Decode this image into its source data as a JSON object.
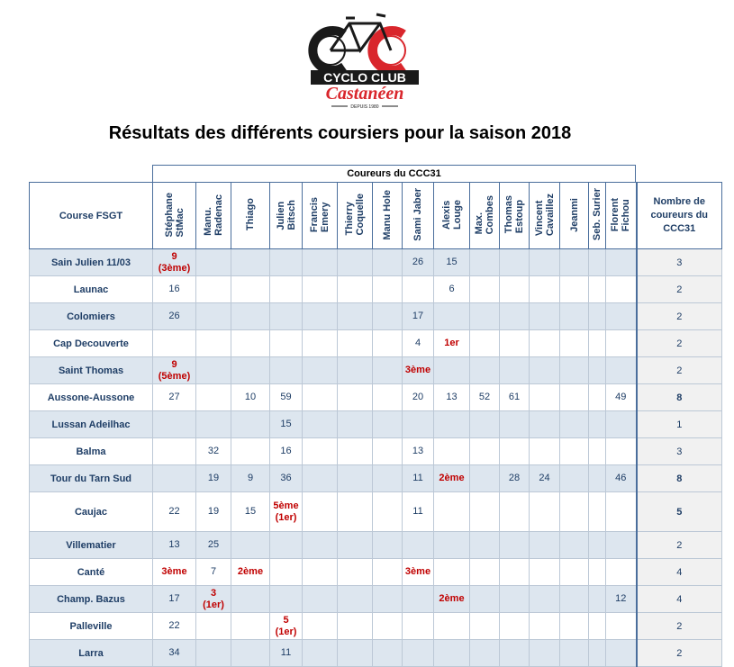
{
  "logo": {
    "brand_line1": "CYCLO CLUB",
    "brand_line2": "Castanéen",
    "tagline": "DEPUIS 1980",
    "colors": {
      "red": "#d9262c",
      "black": "#1a1a1a"
    }
  },
  "title": "Résultats des différents coursiers pour la saison 2018",
  "group_header": "Coureurs du CCC31",
  "columns": {
    "course": "Course FSGT",
    "count": "Nombre de coureurs du CCC31",
    "riders": [
      "Stéphane\nStMac",
      "Manu.\nRadenac",
      "Thiago",
      "Julien\nBitsch",
      "Francis\nEmery",
      "Thierry\nCoquelle",
      "Manu Hole",
      "Sami Jaber",
      "Alexis\nLouge",
      "Max.\nCombes",
      "Thomas\nEstoup",
      "Vincent\nCavaillez",
      "Jeanmi",
      "Seb. Surier",
      "Florent\nFichou"
    ]
  },
  "rows": [
    {
      "course": "Sain Julien 11/03",
      "cells": [
        {
          "t": "9\n(3ème)",
          "red": true
        },
        "",
        "",
        "",
        "",
        "",
        "",
        {
          "t": "26"
        },
        {
          "t": "15"
        },
        "",
        "",
        "",
        "",
        "",
        ""
      ],
      "count": "3",
      "bold": false
    },
    {
      "course": "Launac",
      "cells": [
        {
          "t": "16"
        },
        "",
        "",
        "",
        "",
        "",
        "",
        "",
        {
          "t": "6"
        },
        "",
        "",
        "",
        "",
        "",
        ""
      ],
      "count": "2",
      "bold": false
    },
    {
      "course": "Colomiers",
      "cells": [
        {
          "t": "26"
        },
        "",
        "",
        "",
        "",
        "",
        "",
        {
          "t": "17"
        },
        "",
        "",
        "",
        "",
        "",
        "",
        ""
      ],
      "count": "2",
      "bold": false
    },
    {
      "course": "Cap Decouverte",
      "cells": [
        "",
        "",
        "",
        "",
        "",
        "",
        "",
        {
          "t": "4"
        },
        {
          "t": "1er",
          "red": true
        },
        "",
        "",
        "",
        "",
        "",
        ""
      ],
      "count": "2",
      "bold": false
    },
    {
      "course": "Saint Thomas",
      "cells": [
        {
          "t": "9\n(5ème)",
          "red": true
        },
        "",
        "",
        "",
        "",
        "",
        "",
        {
          "t": "3ème",
          "red": true
        },
        "",
        "",
        "",
        "",
        "",
        "",
        ""
      ],
      "count": "2",
      "bold": false
    },
    {
      "course": "Aussone-Aussone",
      "cells": [
        {
          "t": "27"
        },
        "",
        {
          "t": "10"
        },
        {
          "t": "59"
        },
        "",
        "",
        "",
        {
          "t": "20"
        },
        {
          "t": "13"
        },
        {
          "t": "52"
        },
        {
          "t": "61"
        },
        "",
        "",
        "",
        {
          "t": "49"
        }
      ],
      "count": "8",
      "bold": true
    },
    {
      "course": "Lussan Adeilhac",
      "cells": [
        "",
        "",
        "",
        {
          "t": "15"
        },
        "",
        "",
        "",
        "",
        "",
        "",
        "",
        "",
        "",
        "",
        ""
      ],
      "count": "1",
      "bold": false
    },
    {
      "course": "Balma",
      "cells": [
        "",
        {
          "t": "32"
        },
        "",
        {
          "t": "16"
        },
        "",
        "",
        "",
        {
          "t": "13"
        },
        "",
        "",
        "",
        "",
        "",
        "",
        ""
      ],
      "count": "3",
      "bold": false
    },
    {
      "course": "Tour du Tarn Sud",
      "cells": [
        "",
        {
          "t": "19"
        },
        {
          "t": "9"
        },
        {
          "t": "36"
        },
        "",
        "",
        "",
        {
          "t": "11"
        },
        {
          "t": "2ème",
          "red": true
        },
        "",
        {
          "t": "28"
        },
        {
          "t": "24"
        },
        "",
        "",
        {
          "t": "46"
        }
      ],
      "count": "8",
      "bold": true
    },
    {
      "course": "Caujac",
      "cells": [
        {
          "t": "22"
        },
        {
          "t": "19"
        },
        {
          "t": "15"
        },
        {
          "t": "5ème\n(1er)",
          "red": true
        },
        "",
        "",
        "",
        {
          "t": "11"
        },
        "",
        "",
        "",
        "",
        "",
        "",
        ""
      ],
      "count": "5",
      "bold": true,
      "tall": true
    },
    {
      "course": "Villematier",
      "cells": [
        {
          "t": "13"
        },
        {
          "t": "25"
        },
        "",
        "",
        "",
        "",
        "",
        "",
        "",
        "",
        "",
        "",
        "",
        "",
        ""
      ],
      "count": "2",
      "bold": false
    },
    {
      "course": "Canté",
      "cells": [
        {
          "t": "3ème",
          "red": true
        },
        {
          "t": "7"
        },
        {
          "t": "2ème",
          "red": true
        },
        "",
        "",
        "",
        "",
        {
          "t": "3ème",
          "red": true
        },
        "",
        "",
        "",
        "",
        "",
        "",
        ""
      ],
      "count": "4",
      "bold": false
    },
    {
      "course": "Champ. Bazus",
      "cells": [
        {
          "t": "17"
        },
        {
          "t": "3\n(1er)",
          "red": true
        },
        "",
        "",
        "",
        "",
        "",
        "",
        {
          "t": "2ème",
          "red": true
        },
        "",
        "",
        "",
        "",
        "",
        {
          "t": "12"
        }
      ],
      "count": "4",
      "bold": false
    },
    {
      "course": "Palleville",
      "cells": [
        {
          "t": "22"
        },
        "",
        "",
        {
          "t": "5\n(1er)",
          "red": true
        },
        "",
        "",
        "",
        "",
        "",
        "",
        "",
        "",
        "",
        "",
        ""
      ],
      "count": "2",
      "bold": false
    },
    {
      "course": "Larra",
      "cells": [
        {
          "t": "34"
        },
        "",
        "",
        {
          "t": "11"
        },
        "",
        "",
        "",
        "",
        "",
        "",
        "",
        "",
        "",
        "",
        ""
      ],
      "count": "2",
      "bold": false
    }
  ]
}
